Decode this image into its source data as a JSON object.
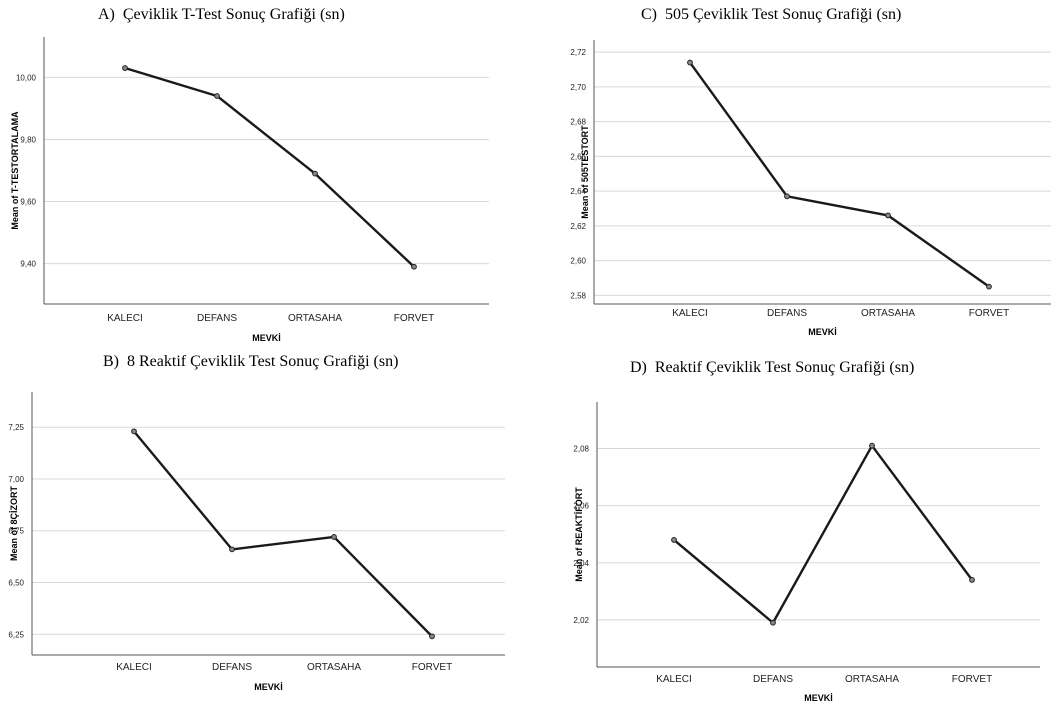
{
  "chart_data": [
    {
      "type": "line",
      "title": "A)  Çeviklik T-Test Sonuç Grafiği (sn)",
      "xlabel": "MEVKİ",
      "ylabel": "Mean of T-TESTORTALAMA",
      "categories": [
        "KALECI",
        "DEFANS",
        "ORTASAHA",
        "FORVET"
      ],
      "values": [
        10.03,
        9.94,
        9.69,
        9.39
      ],
      "yticks": [
        "9,40",
        "9,60",
        "9,80",
        "10,00"
      ],
      "ylim": [
        9.27,
        10.13
      ],
      "grid": true
    },
    {
      "type": "line",
      "title": "B)  8 Reaktif Çeviklik Test Sonuç Grafiği (sn)",
      "xlabel": "MEVKİ",
      "ylabel": "Mean of 8ÇİZORT",
      "categories": [
        "KALECI",
        "DEFANS",
        "ORTASAHA",
        "FORVET"
      ],
      "values": [
        7.23,
        6.66,
        6.72,
        6.24
      ],
      "yticks": [
        "6,25",
        "6,50",
        "6,75",
        "7,00",
        "7,25"
      ],
      "ylim": [
        6.15,
        7.42
      ],
      "grid": true
    },
    {
      "type": "line",
      "title": "C)  505 Çeviklik Test Sonuç Grafiği (sn)",
      "xlabel": "MEVKİ",
      "ylabel": "Mean of 505TESTORT",
      "categories": [
        "KALECI",
        "DEFANS",
        "ORTASAHA",
        "FORVET"
      ],
      "values": [
        2.714,
        2.637,
        2.626,
        2.585
      ],
      "yticks": [
        "2,58",
        "2,60",
        "2,62",
        "2,64",
        "2,66",
        "2,68",
        "2,70",
        "2,72"
      ],
      "ylim": [
        2.575,
        2.727
      ],
      "grid": true
    },
    {
      "type": "line",
      "title": "D)  Reaktif Çeviklik Test Sonuç Grafiği (sn)",
      "xlabel": "MEVKİ",
      "ylabel": "Mean of REAKTİFORT",
      "categories": [
        "KALECI",
        "DEFANS",
        "ORTASAHA",
        "FORVET"
      ],
      "values": [
        2.048,
        2.019,
        2.081,
        2.034
      ],
      "yticks": [
        "2,02",
        "2,04",
        "2,06",
        "2,08"
      ],
      "ylim": [
        2.0035,
        2.0963
      ],
      "grid": true
    }
  ]
}
